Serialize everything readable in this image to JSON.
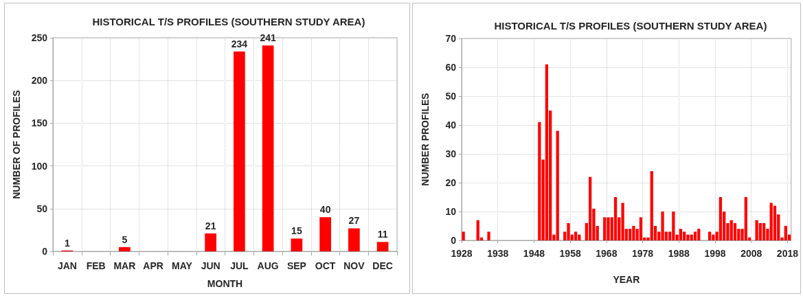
{
  "chart_data": [
    {
      "type": "bar",
      "title": "HISTORICAL T/S PROFILES (SOUTHERN STUDY AREA)",
      "xlabel": "MONTH",
      "ylabel": "NUMBER OF PROFILES",
      "categories": [
        "JAN",
        "FEB",
        "MAR",
        "APR",
        "MAY",
        "JUN",
        "JUL",
        "AUG",
        "SEP",
        "OCT",
        "NOV",
        "DEC"
      ],
      "values": [
        1,
        0,
        5,
        0,
        0,
        21,
        234,
        241,
        15,
        40,
        27,
        11
      ],
      "value_labels": [
        "1",
        null,
        "5",
        null,
        null,
        "21",
        "234",
        "241",
        "15",
        "40",
        "27",
        "11"
      ],
      "color": "#ff0000",
      "ylim": [
        0,
        250
      ],
      "yticks": [
        0,
        50,
        100,
        150,
        200,
        250
      ],
      "grid": true
    },
    {
      "type": "histogram",
      "title": "HISTORICAL T/S PROFILES (SOUTHERN STUDY AREA)",
      "xlabel": "YEAR",
      "ylabel": "NUMBER PROFILES",
      "bins": [
        1928,
        1929,
        1930,
        1931,
        1932,
        1933,
        1934,
        1935,
        1936,
        1937,
        1938,
        1939,
        1940,
        1941,
        1942,
        1943,
        1944,
        1945,
        1946,
        1947,
        1948,
        1949,
        1950,
        1951,
        1952,
        1953,
        1954,
        1955,
        1956,
        1957,
        1958,
        1959,
        1960,
        1961,
        1962,
        1963,
        1964,
        1965,
        1966,
        1967,
        1968,
        1969,
        1970,
        1971,
        1972,
        1973,
        1974,
        1975,
        1976,
        1977,
        1978,
        1979,
        1980,
        1981,
        1982,
        1983,
        1984,
        1985,
        1986,
        1987,
        1988,
        1989,
        1990,
        1991,
        1992,
        1993,
        1994,
        1995,
        1996,
        1997,
        1998,
        1999,
        2000,
        2001,
        2002,
        2003,
        2004,
        2005,
        2006,
        2007,
        2008,
        2009,
        2010,
        2011,
        2012,
        2013,
        2014,
        2015,
        2016,
        2017,
        2018,
        2019
      ],
      "values": [
        3,
        0,
        0,
        0,
        7,
        1,
        0,
        3,
        0,
        0,
        0,
        0,
        0,
        0,
        0,
        0,
        0,
        0,
        0,
        0,
        0,
        41,
        28,
        61,
        45,
        2,
        38,
        0,
        3,
        6,
        2,
        3,
        2,
        0,
        6,
        22,
        11,
        5,
        0,
        8,
        8,
        8,
        15,
        8,
        13,
        4,
        4,
        5,
        4,
        8,
        1,
        1,
        24,
        5,
        3,
        10,
        3,
        3,
        10,
        2,
        4,
        3,
        2,
        2,
        3,
        4,
        0,
        0,
        3,
        2,
        3,
        15,
        10,
        6,
        7,
        6,
        4,
        4,
        15,
        1,
        0,
        7,
        6,
        6,
        4,
        13,
        12,
        9,
        1,
        5,
        2
      ],
      "color": "#ff0000",
      "xlim": [
        1928,
        2019
      ],
      "xticks": [
        1928,
        1938,
        1948,
        1958,
        1968,
        1978,
        1988,
        1998,
        2008,
        2018
      ],
      "ylim": [
        0,
        70
      ],
      "yticks": [
        0,
        10,
        20,
        30,
        40,
        50,
        60,
        70
      ],
      "grid": true
    }
  ]
}
